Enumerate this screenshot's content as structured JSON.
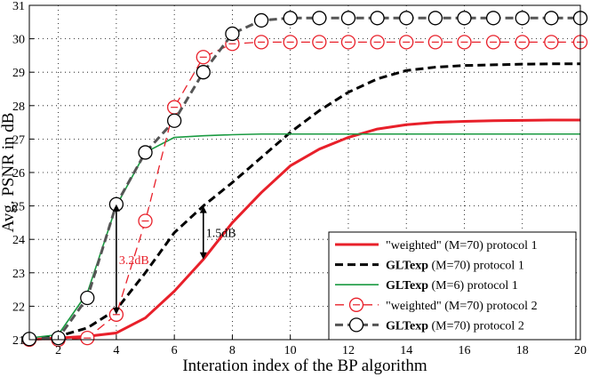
{
  "chart_data": {
    "type": "line",
    "xlabel": "Interation index of the BP algorithm",
    "ylabel": "Avg. PSNR in dB",
    "xlim": [
      1,
      20
    ],
    "ylim": [
      21,
      31
    ],
    "xticks": [
      2,
      4,
      6,
      8,
      10,
      12,
      14,
      16,
      18,
      20
    ],
    "yticks": [
      21,
      22,
      23,
      24,
      25,
      26,
      27,
      28,
      29,
      30,
      31
    ],
    "grid": true,
    "legend_position": "bottom-right",
    "series": [
      {
        "name": "\"weighted\" (M=70) protocol 1",
        "name_bold": "",
        "name_rest": "\"weighted\" (M=70) protocol 1",
        "color": "#e8202a",
        "style": "solid",
        "width": 3,
        "marker": "none",
        "x": [
          1,
          2,
          3,
          4,
          5,
          6,
          7,
          8,
          9,
          10,
          11,
          12,
          13,
          14,
          15,
          16,
          17,
          18,
          19,
          20
        ],
        "y": [
          21.0,
          21.05,
          21.1,
          21.2,
          21.65,
          22.45,
          23.4,
          24.5,
          25.4,
          26.2,
          26.7,
          27.05,
          27.3,
          27.43,
          27.5,
          27.53,
          27.55,
          27.56,
          27.57,
          27.57
        ]
      },
      {
        "name": "GLTexp (M=70) protocol 1",
        "name_bold": "GLTexp",
        "name_rest": " (M=70) protocol 1",
        "color": "#000000",
        "style": "dashed",
        "width": 3,
        "marker": "none",
        "x": [
          1,
          2,
          3,
          4,
          5,
          6,
          7,
          8,
          9,
          10,
          11,
          12,
          13,
          14,
          15,
          16,
          17,
          18,
          19,
          20
        ],
        "y": [
          21.0,
          21.1,
          21.35,
          21.9,
          23.0,
          24.2,
          25.0,
          25.7,
          26.45,
          27.2,
          27.85,
          28.4,
          28.8,
          29.05,
          29.15,
          29.2,
          29.22,
          29.24,
          29.25,
          29.25
        ]
      },
      {
        "name": "GLTexp (M=6) protocol 1",
        "name_bold": "GLTexp",
        "name_rest": " (M=6) protocol 1",
        "color": "#1a9a41",
        "style": "solid",
        "width": 1.6,
        "marker": "none",
        "x": [
          1,
          2,
          3,
          4,
          5,
          6,
          7,
          8,
          9,
          10,
          11,
          12,
          13,
          14,
          15,
          16,
          17,
          18,
          19,
          20
        ],
        "y": [
          21.05,
          21.15,
          22.4,
          25.0,
          26.6,
          27.05,
          27.1,
          27.13,
          27.15,
          27.15,
          27.15,
          27.15,
          27.15,
          27.15,
          27.15,
          27.15,
          27.15,
          27.15,
          27.15,
          27.15
        ]
      },
      {
        "name": "\"weighted\" (M=70) protocol 2",
        "name_bold": "",
        "name_rest": "\"weighted\" (M=70) protocol 2",
        "color": "#e8202a",
        "style": "dashed",
        "width": 1.3,
        "marker": "circle",
        "x": [
          1,
          2,
          3,
          4,
          5,
          6,
          7,
          8,
          9,
          10,
          11,
          12,
          13,
          14,
          15,
          16,
          17,
          18,
          19,
          20
        ],
        "y": [
          21.0,
          21.0,
          21.05,
          21.75,
          24.55,
          27.95,
          29.45,
          29.85,
          29.9,
          29.9,
          29.9,
          29.9,
          29.9,
          29.9,
          29.9,
          29.9,
          29.9,
          29.9,
          29.9,
          29.9
        ]
      },
      {
        "name": "GLTexp (M=70) protocol 2",
        "name_bold": "GLTexp",
        "name_rest": " (M=70) protocol 2",
        "color": "#555555",
        "style": "dashed",
        "width": 3,
        "marker": "circle-black",
        "x": [
          1,
          2,
          3,
          4,
          5,
          6,
          7,
          8,
          9,
          10,
          11,
          12,
          13,
          14,
          15,
          16,
          17,
          18,
          19,
          20
        ],
        "y": [
          21.02,
          21.05,
          22.25,
          25.05,
          26.6,
          27.55,
          29.0,
          30.15,
          30.55,
          30.62,
          30.62,
          30.62,
          30.62,
          30.62,
          30.62,
          30.62,
          30.62,
          30.62,
          30.62,
          30.62
        ]
      }
    ],
    "annotations": [
      {
        "text": "3.2dB",
        "color": "#e8202a",
        "x": 4,
        "y_low": 21.75,
        "y_high": 25.05
      },
      {
        "text": "1.5dB",
        "color": "#000000",
        "x": 7,
        "y_low": 23.4,
        "y_high": 25.0
      }
    ]
  }
}
